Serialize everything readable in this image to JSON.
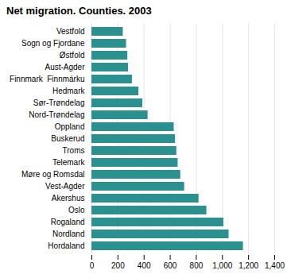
{
  "chart_data": {
    "type": "bar",
    "orientation": "horizontal",
    "title": "Net migration. Counties. 2003",
    "categories": [
      "Hordaland",
      "Nordland",
      "Rogaland",
      "Oslo",
      "Akershus",
      "Vest-Agder",
      "Møre og Romsdal",
      "Telemark",
      "Troms",
      "Buskerud",
      "Oppland",
      "Nord-Trøndelag",
      "Sør-Trøndelag",
      "Hedmark",
      "Finnmark  Finnmárku",
      "Aust-Agder",
      "Østfold",
      "Sogn og Fjordane",
      "Vestfold"
    ],
    "values": [
      1160,
      1050,
      1010,
      880,
      820,
      710,
      680,
      660,
      650,
      640,
      630,
      430,
      390,
      360,
      310,
      280,
      275,
      265,
      240
    ],
    "color": "#2a9090",
    "xlim": [
      0,
      1400
    ],
    "xticks": [
      0,
      200,
      400,
      600,
      800,
      1000,
      1200,
      1400
    ],
    "grid": true
  }
}
